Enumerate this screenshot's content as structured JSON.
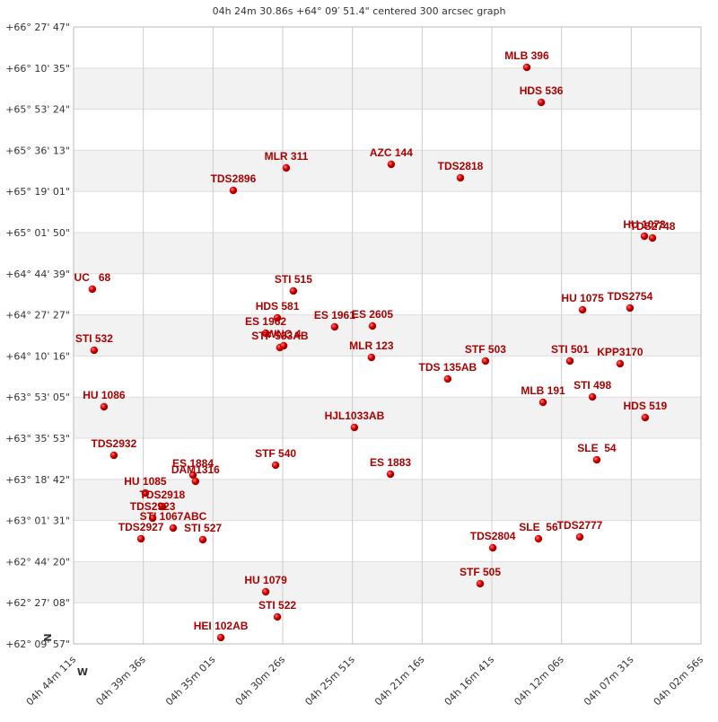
{
  "chart_data": {
    "type": "scatter",
    "title": "04h 24m 30.86s +64° 09′ 51.4\" centered 300 arcsec graph",
    "compass": {
      "north": "N",
      "west": "W"
    },
    "grid": true,
    "banded": true,
    "x_reversed": true,
    "xlim": [
      17051,
      14576
    ],
    "xticks": [
      {
        "value": 17051,
        "label": "04h 44m 11s"
      },
      {
        "value": 16776,
        "label": "04h 39m 36s"
      },
      {
        "value": 16501,
        "label": "04h 35m 01s"
      },
      {
        "value": 16226,
        "label": "04h 30m 26s"
      },
      {
        "value": 15951,
        "label": "04h 25m 51s"
      },
      {
        "value": 15676,
        "label": "04h 21m 16s"
      },
      {
        "value": 15401,
        "label": "04h 16m 41s"
      },
      {
        "value": 15126,
        "label": "04h 12m 06s"
      },
      {
        "value": 14851,
        "label": "04h 07m 31s"
      },
      {
        "value": 14576,
        "label": "04h 02m 56s"
      }
    ],
    "ylim": [
      223797,
      239267
    ],
    "yticks": [
      {
        "value": 239267,
        "label": "+66° 27' 47\""
      },
      {
        "value": 238235,
        "label": "+66° 10' 35\""
      },
      {
        "value": 237204,
        "label": "+65° 53' 24\""
      },
      {
        "value": 236173,
        "label": "+65° 36' 13\""
      },
      {
        "value": 235141,
        "label": "+65° 19' 01\""
      },
      {
        "value": 234110,
        "label": "+65° 01' 50\""
      },
      {
        "value": 233079,
        "label": "+64° 44' 39\""
      },
      {
        "value": 232047,
        "label": "+64° 27' 27\""
      },
      {
        "value": 231016,
        "label": "+64° 10' 16\""
      },
      {
        "value": 229985,
        "label": "+63° 53' 05\""
      },
      {
        "value": 228953,
        "label": "+63° 35' 53\""
      },
      {
        "value": 227922,
        "label": "+63° 18' 42\""
      },
      {
        "value": 226891,
        "label": "+63° 01' 31\""
      },
      {
        "value": 225860,
        "label": "+62° 44' 20\""
      },
      {
        "value": 224828,
        "label": "+62° 27' 08\""
      },
      {
        "value": 223797,
        "label": "+62° 09' 57\""
      }
    ],
    "series": [
      {
        "color": "#cc0000",
        "labels": [
          "MLB 396",
          "HDS 536",
          "MLR 311",
          "AZC 144",
          "TDS2818",
          "TDS2896",
          "HU 1073",
          "TDS2748",
          "UC   68",
          "STI 515",
          "HDS 581",
          "ES 1962",
          "STF 533AB",
          "WNC 4",
          "ES 1961",
          "ES 2605",
          "STI 532",
          "MLR 123",
          "STF 503",
          "STI 501",
          "HU 1075",
          "TDS2754",
          "KPP3170",
          "TDS 135AB",
          "HU 1086",
          "MLB 191",
          "STI 498",
          "HDS 519",
          "HJL1033AB",
          "TDS2932",
          "STF 540",
          "SLE  54",
          "ES 1883",
          "ES 1884",
          "DAM1316",
          "HU 1085",
          "TDS2918",
          "TDS2923",
          "STI 1067ABC",
          "TDS2927",
          "STI 527",
          "TDS2804",
          "SLE  56",
          "TDS2777",
          "STF 505",
          "HU 1079",
          "STI 522",
          "HEI 102AB"
        ],
        "x": [
          15263,
          15206,
          16212,
          15798,
          15525,
          16421,
          14799,
          14767,
          16977,
          16184,
          16247,
          16293,
          16237,
          16222,
          16021,
          15872,
          16970,
          15876,
          15426,
          15093,
          15043,
          14856,
          14895,
          15575,
          16931,
          15199,
          15004,
          14796,
          15943,
          16892,
          16254,
          14987,
          15801,
          16580,
          16570,
          16768,
          16701,
          16739,
          16658,
          16785,
          16541,
          15397,
          15217,
          15054,
          15447,
          16293,
          16247,
          16470
        ],
        "values": [
          238254,
          237375,
          235732,
          235822,
          235484,
          235169,
          234020,
          233975,
          232692,
          232647,
          231971,
          231588,
          231228,
          231273,
          231746,
          231768,
          231160,
          230980,
          230890,
          230890,
          232174,
          232219,
          230823,
          230440,
          229742,
          229854,
          229990,
          229472,
          229224,
          228526,
          228278,
          228413,
          228053,
          228030,
          227873,
          227580,
          227242,
          226950,
          226702,
          226432,
          226409,
          226206,
          226432,
          226477,
          225306,
          225103,
          224473,
          223955
        ]
      }
    ]
  }
}
